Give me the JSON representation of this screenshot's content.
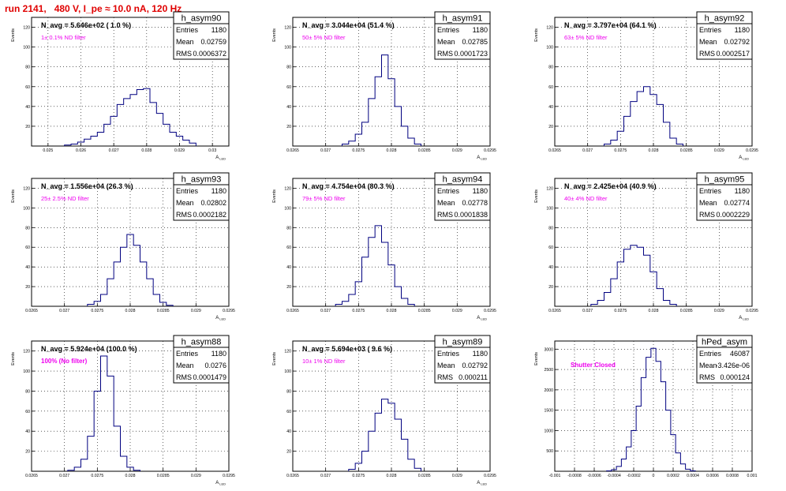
{
  "run_title": "run 2141,   480 V, I_pe ≈ 10.0 nA, 120 Hz",
  "colors": {
    "title": "#e00000",
    "note": "#ee00ee",
    "hist": "#000080",
    "grid": "#000000"
  },
  "chart_data": [
    {
      "type": "histogram",
      "name": "h_asym90",
      "ylabel": "Events",
      "xlabel": "A_LED",
      "headline": "N_avg = 5.646e+02 ( 1.0 %)",
      "note": "1± 0.1% ND filter",
      "stats": {
        "entries": "1180",
        "mean": "0.02759",
        "rms": "0.0006372"
      },
      "xlim": [
        0.0245,
        0.0305
      ],
      "ylim": [
        0,
        130
      ],
      "xticks": [
        "0.025",
        "0.026",
        "0.027",
        "0.028",
        "0.029",
        "0.03"
      ],
      "yticks": [
        "20",
        "40",
        "60",
        "80",
        "100",
        "120"
      ],
      "x": [
        0.0256,
        0.0258,
        0.026,
        0.0262,
        0.0264,
        0.0266,
        0.0268,
        0.027,
        0.0272,
        0.0274,
        0.0276,
        0.0278,
        0.028,
        0.0282,
        0.0284,
        0.0286,
        0.0288,
        0.029,
        0.0292,
        0.0294
      ],
      "values": [
        1,
        2,
        4,
        7,
        10,
        14,
        22,
        30,
        42,
        48,
        52,
        57,
        58,
        44,
        33,
        22,
        14,
        10,
        6,
        3
      ]
    },
    {
      "type": "histogram",
      "name": "h_asym91",
      "ylabel": "Events",
      "xlabel": "A_LED",
      "headline": "N_avg = 3.044e+04 (51.4 %)",
      "note": "50± 5% ND filter",
      "stats": {
        "entries": "1180",
        "mean": "0.02785",
        "rms": "0.0001723"
      },
      "xlim": [
        0.0265,
        0.0295
      ],
      "ylim": [
        0,
        130
      ],
      "xticks": [
        "0.0265",
        "0.027",
        "0.0275",
        "0.028",
        "0.0285",
        "0.029",
        "0.0295"
      ],
      "yticks": [
        "20",
        "40",
        "60",
        "80",
        "100",
        "120"
      ],
      "x": [
        0.0273,
        0.0274,
        0.0275,
        0.0276,
        0.0277,
        0.0278,
        0.0279,
        0.028,
        0.0281,
        0.0282,
        0.0283,
        0.0284
      ],
      "values": [
        2,
        5,
        12,
        24,
        48,
        70,
        92,
        68,
        40,
        20,
        8,
        2
      ]
    },
    {
      "type": "histogram",
      "name": "h_asym92",
      "ylabel": "Events",
      "xlabel": "A_LED",
      "headline": "N_avg = 3.797e+04 (64.1 %)",
      "note": "63± 5% ND filter",
      "stats": {
        "entries": "1180",
        "mean": "0.02792",
        "rms": "0.0002517"
      },
      "xlim": [
        0.0265,
        0.0295
      ],
      "ylim": [
        0,
        130
      ],
      "xticks": [
        "0.0265",
        "0.027",
        "0.0275",
        "0.028",
        "0.0285",
        "0.029",
        "0.0295"
      ],
      "yticks": [
        "20",
        "40",
        "60",
        "80",
        "100",
        "120"
      ],
      "x": [
        0.0273,
        0.0274,
        0.0275,
        0.0276,
        0.0277,
        0.0278,
        0.0279,
        0.028,
        0.0281,
        0.0282,
        0.0283,
        0.0284
      ],
      "values": [
        2,
        6,
        15,
        30,
        45,
        55,
        60,
        52,
        42,
        24,
        8,
        2
      ]
    },
    {
      "type": "histogram",
      "name": "h_asym93",
      "ylabel": "Events",
      "xlabel": "A_LED",
      "headline": "N_avg = 1.556e+04 (26.3 %)",
      "note": "25± 2.5% ND filter",
      "stats": {
        "entries": "1180",
        "mean": "0.02802",
        "rms": "0.0002182"
      },
      "xlim": [
        0.0265,
        0.0295
      ],
      "ylim": [
        0,
        130
      ],
      "xticks": [
        "0.0265",
        "0.027",
        "0.0275",
        "0.028",
        "0.0285",
        "0.029",
        "0.0295"
      ],
      "yticks": [
        "20",
        "40",
        "60",
        "80",
        "100",
        "120"
      ],
      "x": [
        0.0274,
        0.0275,
        0.0276,
        0.0277,
        0.0278,
        0.0279,
        0.028,
        0.0281,
        0.0282,
        0.0283,
        0.0284,
        0.0285,
        0.0286
      ],
      "values": [
        2,
        5,
        12,
        28,
        45,
        60,
        73,
        62,
        45,
        28,
        12,
        4,
        1
      ]
    },
    {
      "type": "histogram",
      "name": "h_asym94",
      "ylabel": "Events",
      "xlabel": "A_LED",
      "headline": "N_avg = 4.754e+04 (80.3 %)",
      "note": "79± 5% ND filter",
      "stats": {
        "entries": "1180",
        "mean": "0.02778",
        "rms": "0.0001838"
      },
      "xlim": [
        0.0265,
        0.0295
      ],
      "ylim": [
        0,
        130
      ],
      "xticks": [
        "0.0265",
        "0.027",
        "0.0275",
        "0.028",
        "0.0285",
        "0.029",
        "0.0295"
      ],
      "yticks": [
        "20",
        "40",
        "60",
        "80",
        "100",
        "120"
      ],
      "x": [
        0.0272,
        0.0273,
        0.0274,
        0.0275,
        0.0276,
        0.0277,
        0.0278,
        0.0279,
        0.028,
        0.0281,
        0.0282,
        0.0283
      ],
      "values": [
        2,
        5,
        12,
        25,
        50,
        70,
        82,
        65,
        42,
        20,
        8,
        2
      ]
    },
    {
      "type": "histogram",
      "name": "h_asym95",
      "ylabel": "Events",
      "xlabel": "A_LED",
      "headline": "N_avg = 2.425e+04 (40.9 %)",
      "note": "40± 4% ND filter",
      "stats": {
        "entries": "1180",
        "mean": "0.02774",
        "rms": "0.0002229"
      },
      "xlim": [
        0.0265,
        0.0295
      ],
      "ylim": [
        0,
        130
      ],
      "xticks": [
        "0.0265",
        "0.027",
        "0.0275",
        "0.028",
        "0.0285",
        "0.029",
        "0.0295"
      ],
      "yticks": [
        "20",
        "40",
        "60",
        "80",
        "100",
        "120"
      ],
      "x": [
        0.0271,
        0.0272,
        0.0273,
        0.0274,
        0.0275,
        0.0276,
        0.0277,
        0.0278,
        0.0279,
        0.028,
        0.0281,
        0.0282,
        0.0283
      ],
      "values": [
        2,
        6,
        14,
        28,
        45,
        58,
        62,
        60,
        52,
        35,
        18,
        6,
        2
      ]
    },
    {
      "type": "histogram",
      "name": "h_asym88",
      "ylabel": "Events",
      "xlabel": "A_LED",
      "headline": "N_avg = 5.924e+04 (100.0 %)",
      "note": "100% (No filter)",
      "stats": {
        "entries": "1180",
        "mean": "0.0276",
        "rms": "0.0001479"
      },
      "xlim": [
        0.0265,
        0.0295
      ],
      "ylim": [
        0,
        130
      ],
      "xticks": [
        "0.0265",
        "0.027",
        "0.0275",
        "0.028",
        "0.0285",
        "0.029",
        "0.0295"
      ],
      "yticks": [
        "20",
        "40",
        "60",
        "80",
        "100",
        "120"
      ],
      "x": [
        0.0271,
        0.0272,
        0.0273,
        0.0274,
        0.0275,
        0.0276,
        0.0277,
        0.0278,
        0.0279,
        0.028,
        0.0281
      ],
      "values": [
        1,
        4,
        12,
        35,
        80,
        115,
        95,
        45,
        15,
        4,
        1
      ]
    },
    {
      "type": "histogram",
      "name": "h_asym89",
      "ylabel": "Events",
      "xlabel": "A_LED",
      "headline": "N_avg = 5.694e+03 ( 9.6 %)",
      "note": "10± 1% ND filter",
      "stats": {
        "entries": "1180",
        "mean": "0.02792",
        "rms": "0.000211"
      },
      "xlim": [
        0.0265,
        0.0295
      ],
      "ylim": [
        0,
        130
      ],
      "xticks": [
        "0.0265",
        "0.027",
        "0.0275",
        "0.028",
        "0.0285",
        "0.029",
        "0.0295"
      ],
      "yticks": [
        "20",
        "40",
        "60",
        "80",
        "100",
        "120"
      ],
      "x": [
        0.0274,
        0.0275,
        0.0276,
        0.0277,
        0.0278,
        0.0279,
        0.028,
        0.0281,
        0.0282,
        0.0283,
        0.0284
      ],
      "values": [
        2,
        8,
        20,
        40,
        58,
        72,
        68,
        52,
        32,
        12,
        3
      ]
    },
    {
      "type": "histogram",
      "name": "hPed_asym",
      "ylabel": "Events",
      "xlabel": "",
      "headline": "",
      "note": "Shutter Closed",
      "stats": {
        "entries": "46087",
        "mean": "-3.426e-06",
        "rms": "0.000124"
      },
      "xlim": [
        -0.001,
        0.001
      ],
      "ylim": [
        0,
        3200
      ],
      "xticks": [
        "-0.001",
        "-0.0008",
        "-0.0006",
        "-0.0004",
        "-0.0002",
        "0",
        "0.0002",
        "0.0004",
        "0.0006",
        "0.0008",
        "0.001"
      ],
      "yticks": [
        "500",
        "1000",
        "1500",
        "2000",
        "2500",
        "3000"
      ],
      "x": [
        -0.00045,
        -0.0004,
        -0.00035,
        -0.0003,
        -0.00025,
        -0.0002,
        -0.00015,
        -0.0001,
        -5e-05,
        0.0,
        5e-05,
        0.0001,
        0.00015,
        0.0002,
        0.00025,
        0.0003,
        0.00035,
        0.0004
      ],
      "values": [
        10,
        40,
        120,
        300,
        600,
        1000,
        1600,
        2300,
        2800,
        3020,
        2700,
        2200,
        1500,
        900,
        450,
        180,
        50,
        10
      ]
    }
  ]
}
